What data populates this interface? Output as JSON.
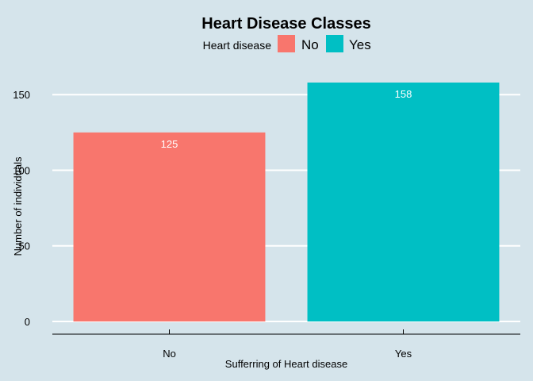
{
  "chart_data": {
    "type": "bar",
    "title": "Heart Disease Classes",
    "xlabel": "Sufferring of Heart disease",
    "ylabel": "Number of individuals",
    "categories": [
      "No",
      "Yes"
    ],
    "values": [
      125,
      158
    ],
    "data_labels": [
      "125",
      "158"
    ],
    "colors": [
      "#f8766d",
      "#00bfc4"
    ],
    "ylim": [
      0,
      158
    ],
    "yticks": [
      0,
      50,
      100,
      150
    ],
    "ytick_labels": [
      "0",
      "50",
      "100",
      "150"
    ],
    "grid": "horizontal",
    "legend": {
      "title": "Heart disease",
      "position": "top",
      "entries": [
        {
          "label": "No",
          "color": "#f8766d"
        },
        {
          "label": "Yes",
          "color": "#00bfc4"
        }
      ]
    },
    "background": "#d5e4eb",
    "grid_color": "#ffffff"
  }
}
